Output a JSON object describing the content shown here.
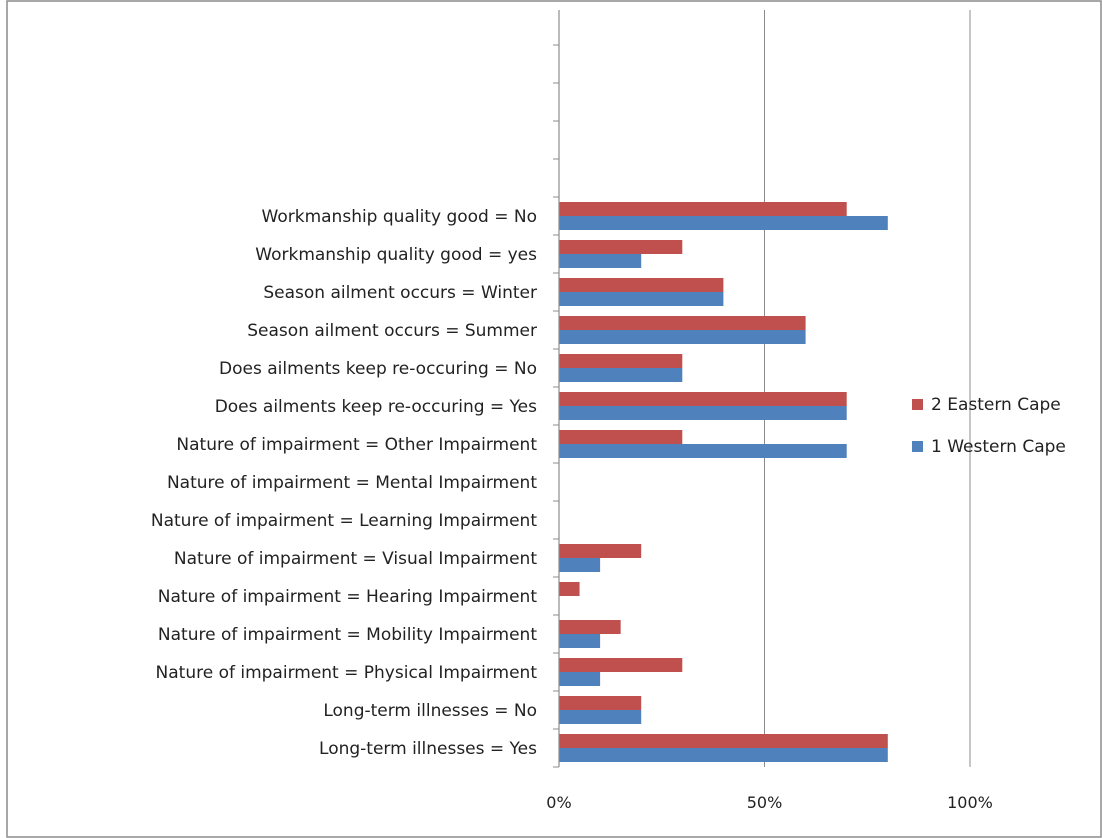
{
  "chart_data": {
    "type": "bar",
    "orientation": "horizontal",
    "categories": [
      "Long-term illnesses = Yes",
      "Long-term illnesses = No",
      "Nature of impairment = Physical Impairment",
      "Nature of impairment = Mobility Impairment",
      "Nature of impairment = Hearing Impairment",
      "Nature of impairment = Visual Impairment",
      "Nature of impairment = Learning Impairment",
      "Nature of impairment = Mental Impairment",
      "Nature of impairment = Other Impairment",
      "Does ailments keep re-occuring = Yes",
      "Does ailments keep re-occuring = No",
      "Season ailment occurs = Summer",
      "Season ailment occurs = Winter",
      "Workmanship quality good = yes",
      "Workmanship quality good = No"
    ],
    "empty_slots_above": 4,
    "series": [
      {
        "name": "1 Western Cape",
        "color": "#4f81bd",
        "values": [
          0.8,
          0.2,
          0.1,
          0.1,
          0.0,
          0.1,
          0.0,
          0.0,
          0.7,
          0.7,
          0.3,
          0.6,
          0.4,
          0.2,
          0.8
        ]
      },
      {
        "name": "2 Eastern Cape",
        "color": "#c0504d",
        "values": [
          0.8,
          0.2,
          0.3,
          0.15,
          0.05,
          0.2,
          0.0,
          0.0,
          0.3,
          0.7,
          0.3,
          0.6,
          0.4,
          0.3,
          0.7
        ]
      }
    ],
    "x_ticks": [
      {
        "value": 0,
        "label": "0%"
      },
      {
        "value": 0.5,
        "label": "50%"
      },
      {
        "value": 1,
        "label": "100%"
      }
    ],
    "xlim": [
      0,
      1
    ],
    "grid": true,
    "legend_position": "right",
    "legend_order": [
      "2 Eastern Cape",
      "1 Western Cape"
    ],
    "title": "",
    "xlabel": "",
    "ylabel": ""
  }
}
